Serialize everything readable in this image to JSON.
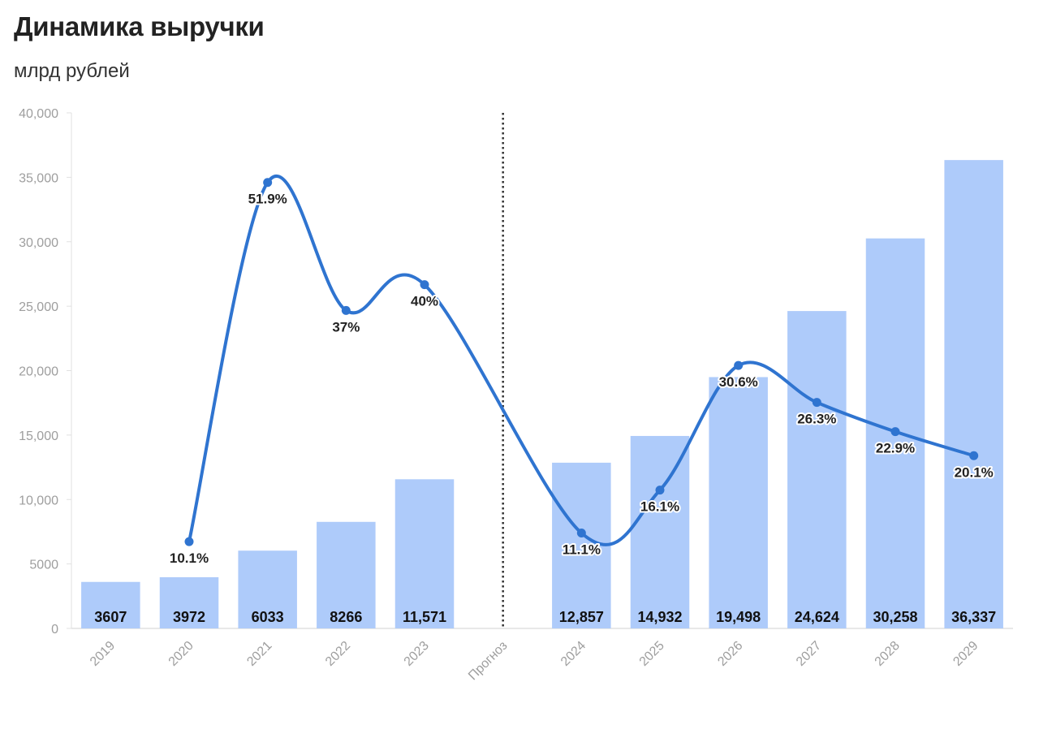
{
  "chart_data": {
    "type": "bar",
    "title": "Динамика выручки",
    "subtitle": "млрд рублей",
    "categories": [
      "2019",
      "2020",
      "2021",
      "2022",
      "2023",
      "Прогноз",
      "2024",
      "2025",
      "2026",
      "2027",
      "2028",
      "2029"
    ],
    "ylim": [
      0,
      40000
    ],
    "yticks": [
      0,
      5000,
      10000,
      15000,
      20000,
      25000,
      30000,
      35000,
      40000
    ],
    "ytick_labels": [
      "0",
      "5000",
      "10,000",
      "15,000",
      "20,000",
      "25,000",
      "30,000",
      "35,000",
      "40,000"
    ],
    "forecast_divider_category": "Прогноз",
    "bar_color": "#aecbfa",
    "line_color": "#2f74d0",
    "series": [
      {
        "type": "bar",
        "values": [
          3607,
          3972,
          6033,
          8266,
          11571,
          null,
          12857,
          14932,
          19498,
          24624,
          30258,
          36337
        ],
        "labels": [
          "3607",
          "3972",
          "6033",
          "8266",
          "11,571",
          "",
          "12,857",
          "14,932",
          "19,498",
          "24,624",
          "30,258",
          "36,337"
        ]
      },
      {
        "type": "line",
        "smooth": true,
        "values": [
          null,
          10.1,
          51.9,
          37,
          40,
          null,
          11.1,
          16.1,
          30.6,
          26.3,
          22.9,
          20.1
        ],
        "labels": [
          "",
          "10.1%",
          "51.9%",
          "37%",
          "40%",
          "",
          "11.1%",
          "16.1%",
          "30.6%",
          "26.3%",
          "22.9%",
          "20.1%"
        ]
      }
    ],
    "grid": false,
    "legend": "none"
  }
}
